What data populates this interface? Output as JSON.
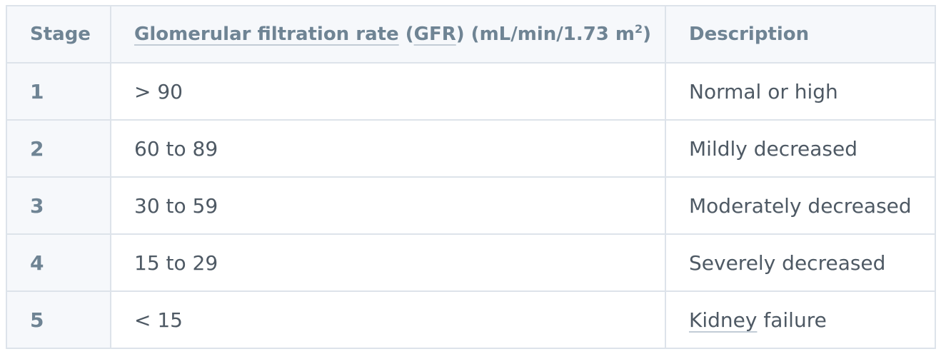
{
  "header": {
    "stage": "Stage",
    "gfr_link": "Glomerular filtration rate",
    "gfr_open_paren": " (",
    "gfr_abbr": "GFR",
    "gfr_units": ") (mL/min/1.73 m",
    "gfr_sup": "2",
    "gfr_close": ")",
    "description": "Description"
  },
  "rows": [
    {
      "stage": "1",
      "gfr": "> 90",
      "description": "Normal or high"
    },
    {
      "stage": "2",
      "gfr": "60 to 89",
      "description": "Mildly decreased"
    },
    {
      "stage": "3",
      "gfr": "30 to 59",
      "description": "Moderately decreased"
    },
    {
      "stage": "4",
      "gfr": "15 to 29",
      "description": "Severely decreased"
    },
    {
      "stage": "5",
      "gfr": "< 15",
      "description_link": "Kidney",
      "description_rest": " failure"
    }
  ],
  "colors": {
    "border": "#dde3ea",
    "header_text": "#6f8494",
    "body_text": "#4e5964",
    "header_bg": "#f6f8fb"
  }
}
